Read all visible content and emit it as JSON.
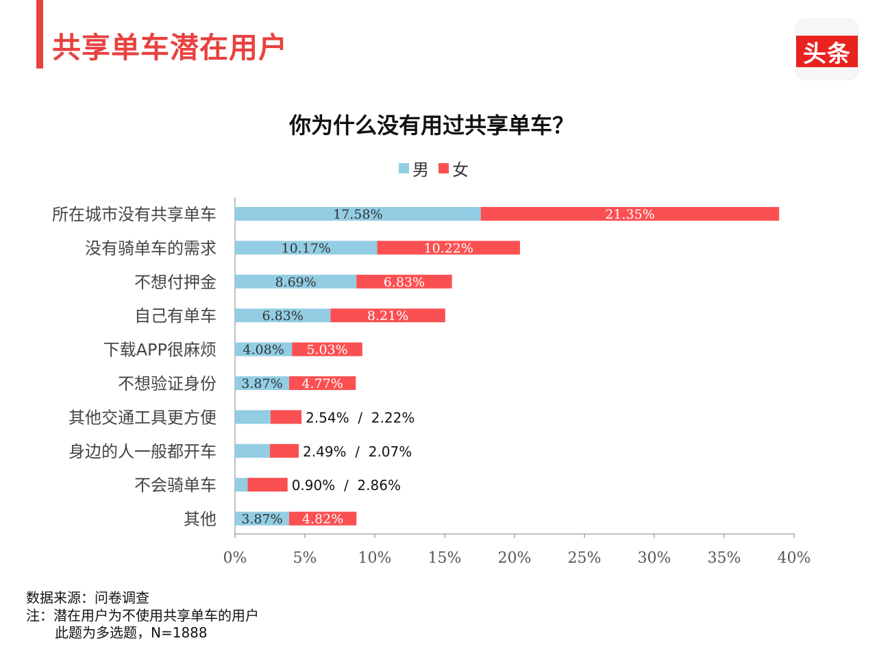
{
  "page_title": "共享单车潜在用户",
  "logo_text": "头条",
  "chart_data": {
    "type": "bar",
    "orientation": "horizontal",
    "stacked": true,
    "title": "你为什么没有用过共享单车？",
    "legend_position": "top",
    "categories": [
      "所在城市没有共享单车",
      "没有骑单车的需求",
      "不想付押金",
      "自己有单车",
      "下载APP很麻烦",
      "不想验证身份",
      "其他交通工具更方便",
      "身边的人一般都开车",
      "不会骑单车",
      "其他"
    ],
    "series": [
      {
        "name": "男",
        "color": "#92cde4",
        "values": [
          17.58,
          10.17,
          8.69,
          6.83,
          4.08,
          3.87,
          2.54,
          2.49,
          0.9,
          3.87
        ],
        "labels": [
          "17.58%",
          "10.17%",
          "8.69%",
          "6.83%",
          "4.08%",
          "3.87%",
          "",
          "",
          "",
          "3.87%"
        ]
      },
      {
        "name": "女",
        "color": "#fb5052",
        "values": [
          21.35,
          10.22,
          6.83,
          8.21,
          5.03,
          4.77,
          2.22,
          2.07,
          2.86,
          4.82
        ],
        "labels": [
          "21.35%",
          "10.22%",
          "6.83%",
          "8.21%",
          "5.03%",
          "4.77%",
          "",
          "",
          "",
          "4.82%"
        ]
      }
    ],
    "outside_labels": [
      "",
      "",
      "",
      "",
      "",
      "",
      "2.54%  /  2.22%",
      "2.49%  /  2.07%",
      "0.90%  /  2.86%",
      ""
    ],
    "xlim": [
      0,
      40
    ],
    "xticks": [
      0,
      5,
      10,
      15,
      20,
      25,
      30,
      35,
      40
    ],
    "xtick_labels": [
      "0%",
      "5%",
      "10%",
      "15%",
      "20%",
      "25%",
      "30%",
      "35%",
      "40%"
    ],
    "grid": false
  },
  "footnotes": {
    "source": "数据来源：问卷调查",
    "note1": "注：潜在用户为不使用共享单车的用户",
    "note2": "此题为多选题，N=1888"
  }
}
